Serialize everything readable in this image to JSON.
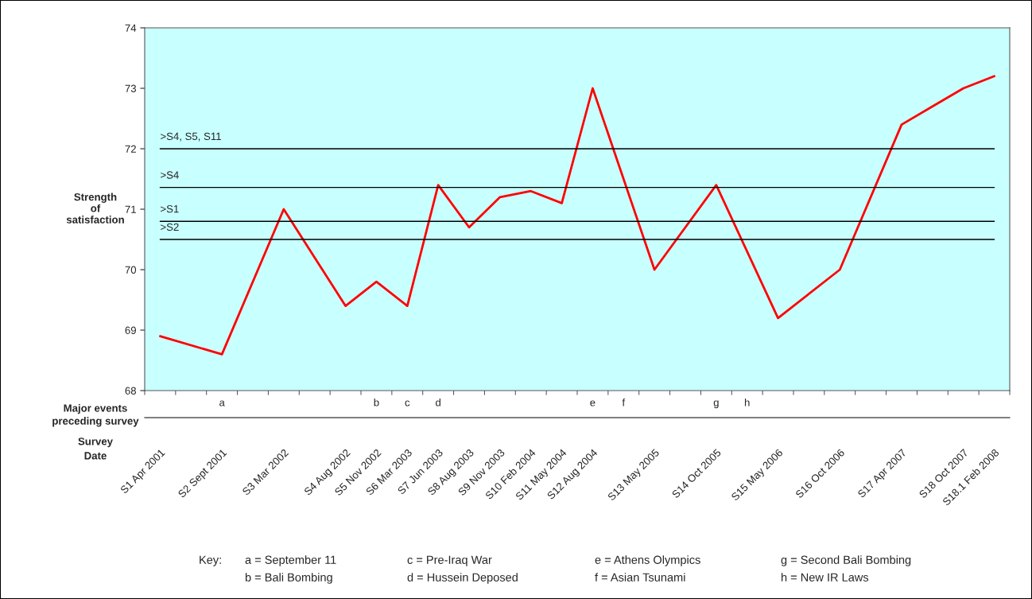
{
  "chart_data": [
    {
      "type": "line",
      "categories": [
        "S1 Apr 2001",
        null,
        "S2 Sept 2001",
        null,
        "S3 Mar 2002",
        null,
        "S4 Aug 2002",
        "S5 Nov 2002",
        "S6 Mar 2003",
        "S7 Jun 2003",
        "S8 Aug 2003",
        "S9 Nov 2003",
        "S10 Feb 2004",
        "S11 May 2004",
        "S12 Aug 2004",
        null,
        "S13 May 2005",
        null,
        "S14 Oct 2005",
        null,
        "S15 May 2006",
        null,
        "S16 Oct 2006",
        null,
        "S17 Apr 2007",
        null,
        "S18 Oct 2007",
        "S18.1 Feb 2008"
      ],
      "series": [
        {
          "color": "#ff0000",
          "values": [
            68.9,
            null,
            68.6,
            null,
            71.0,
            null,
            69.4,
            69.8,
            69.4,
            71.4,
            70.7,
            71.2,
            71.3,
            71.1,
            73.0,
            null,
            70.0,
            null,
            71.4,
            null,
            69.2,
            null,
            70.0,
            null,
            72.4,
            72.7,
            73.0,
            73.2
          ]
        }
      ],
      "ylim": [
        68,
        74
      ],
      "yticks": [
        68,
        69,
        70,
        71,
        72,
        73,
        74
      ],
      "ylabel": "Strength\nof\nsatisfaction",
      "xlabel": "Survey\nDate",
      "ref_lines": [
        {
          "axis": "y",
          "value": 72.0,
          "label": ">S4, S5, S11",
          "color": "#000000"
        },
        {
          "axis": "y",
          "value": 71.36,
          "label": ">S4",
          "color": "#000000"
        },
        {
          "axis": "y",
          "value": 70.8,
          "label": ">S1",
          "color": "#000000"
        },
        {
          "axis": "y",
          "value": 70.5,
          "label": ">S2",
          "color": "#000000"
        }
      ],
      "annotations": [
        "Key:",
        "a = September 11",
        "b = Bali Bombing",
        "c = Pre-Iraq War",
        "d = Hussein Deposed",
        "e = Athens Olympics",
        "f = Asian Tsunami",
        "g = Second Bali Bombing",
        "h = New IR Laws"
      ],
      "marker": "none",
      "line_style": "solid"
    },
    {
      "type": "other",
      "categories": [
        null,
        null,
        "a",
        null,
        null,
        null,
        null,
        "b",
        "c",
        "d",
        null,
        null,
        null,
        null,
        "e",
        "f",
        null,
        null,
        "g",
        "h",
        null,
        null,
        null,
        null,
        null,
        null,
        null,
        null
      ],
      "xlabel": "Major events\npreceding survey"
    }
  ]
}
